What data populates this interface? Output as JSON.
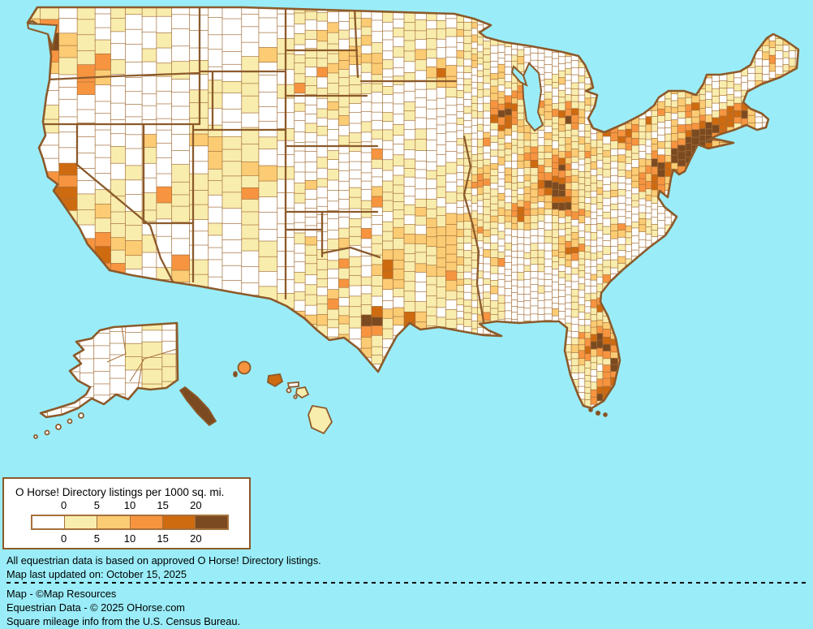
{
  "legend": {
    "title": "O Horse! Directory listings per 1000 sq. mi.",
    "ticks": [
      "0",
      "5",
      "10",
      "15",
      "20"
    ],
    "scale_breaks": [
      0,
      5,
      10,
      15,
      20
    ],
    "palette": [
      "#FFFFFF",
      "#F9EDAD",
      "#FCCC74",
      "#F79440",
      "#CE6A10",
      "#7B4A20"
    ]
  },
  "notes": {
    "line1": "All equestrian data is based on approved O Horse! Directory listings.",
    "line2": "Map last updated on: October 15, 2025"
  },
  "credits": {
    "line1": "Map - ©Map Resources",
    "line2": "Equestrian Data - © 2025 OHorse.com",
    "line3": "Square mileage info from the U.S. Census Bureau."
  },
  "colors": {
    "ocean": "#9AEDF8",
    "county_border": "#A5713C",
    "state_border": "#8C5A2B",
    "text": "#000000"
  },
  "map": {
    "type": "choropleth",
    "region": "United States counties with Alaska and Hawaii"
  }
}
